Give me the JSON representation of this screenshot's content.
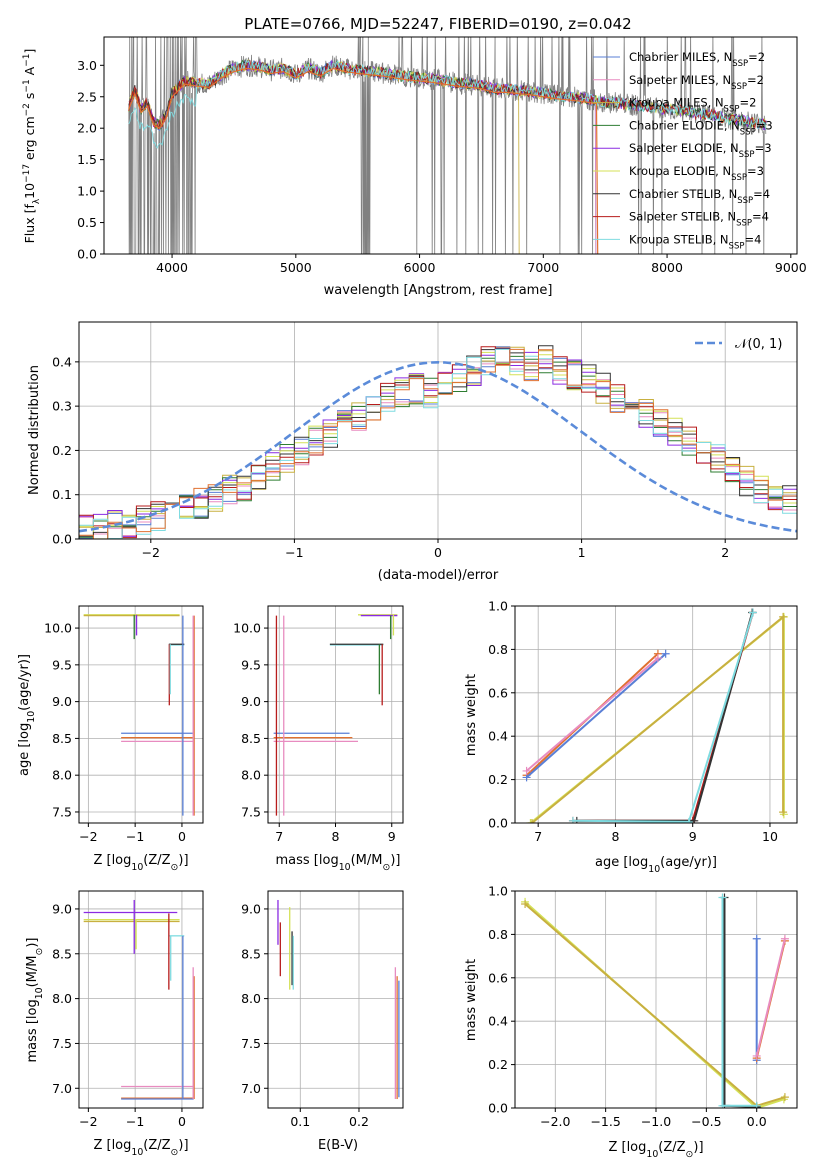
{
  "colors": {
    "chabrier_miles": "#5a7fd6",
    "salpeter_miles": "#e88cc0",
    "kroupa_miles": "#c8b040",
    "chabrier_elodie": "#2e7d32",
    "salpeter_elodie": "#8a2be2",
    "kroupa_elodie": "#d4e157",
    "chabrier_stelib": "#333333",
    "salpeter_stelib": "#b71c1c",
    "kroupa_stelib": "#7fdbe0",
    "data": "#808080",
    "fit": "#e07030",
    "normal": "#5b8bd9",
    "grid": "#b0b0b0"
  },
  "chart_data": [
    {
      "id": "spectrum",
      "type": "line",
      "title": "PLATE=0766, MJD=52247, FIBERID=0190, z=0.042",
      "xlabel": "wavelength [Angstrom, rest frame]",
      "ylabel_prefix": "Flux [f",
      "ylabel_sub": "λ",
      "ylabel_mid": "10",
      "ylabel_sup": "−17",
      "ylabel_rest": " erg cm",
      "ylabel_sup2": "−2",
      "ylabel_mid2": " s",
      "ylabel_sup3": "−1",
      "ylabel_mid3": " A",
      "ylabel_sup4": "−1",
      "ylabel_end": "]",
      "xlim": [
        3450,
        9050
      ],
      "ylim": [
        0,
        3.45
      ],
      "xticks": [
        4000,
        5000,
        6000,
        7000,
        8000,
        9000
      ],
      "yticks": [
        0.0,
        0.5,
        1.0,
        1.5,
        2.0,
        2.5,
        3.0
      ],
      "model_points": [
        [
          3650,
          2.35
        ],
        [
          3700,
          2.6
        ],
        [
          3750,
          2.3
        ],
        [
          3800,
          2.4
        ],
        [
          3850,
          2.1
        ],
        [
          3900,
          2.05
        ],
        [
          3950,
          2.2
        ],
        [
          4000,
          2.55
        ],
        [
          4100,
          2.75
        ],
        [
          4200,
          2.72
        ],
        [
          4300,
          2.7
        ],
        [
          4400,
          2.85
        ],
        [
          4500,
          2.95
        ],
        [
          4600,
          3.0
        ],
        [
          4700,
          2.98
        ],
        [
          4800,
          2.92
        ],
        [
          4900,
          2.95
        ],
        [
          5000,
          2.85
        ],
        [
          5100,
          2.95
        ],
        [
          5200,
          2.88
        ],
        [
          5300,
          3.0
        ],
        [
          5400,
          2.95
        ],
        [
          5500,
          2.92
        ],
        [
          5600,
          2.9
        ],
        [
          5700,
          2.88
        ],
        [
          5800,
          2.85
        ],
        [
          5900,
          2.82
        ],
        [
          6000,
          2.8
        ],
        [
          6100,
          2.78
        ],
        [
          6200,
          2.75
        ],
        [
          6300,
          2.72
        ],
        [
          6400,
          2.7
        ],
        [
          6500,
          2.68
        ],
        [
          6600,
          2.62
        ],
        [
          6700,
          2.62
        ],
        [
          6800,
          2.6
        ],
        [
          6900,
          2.58
        ],
        [
          7000,
          2.55
        ],
        [
          7100,
          2.52
        ],
        [
          7200,
          2.5
        ],
        [
          7300,
          2.48
        ],
        [
          7400,
          2.45
        ],
        [
          7500,
          2.42
        ],
        [
          7600,
          2.4
        ],
        [
          7700,
          2.37
        ],
        [
          7800,
          2.35
        ],
        [
          7900,
          2.32
        ],
        [
          8000,
          2.3
        ],
        [
          8100,
          2.28
        ],
        [
          8200,
          2.25
        ],
        [
          8300,
          2.22
        ],
        [
          8400,
          2.2
        ],
        [
          8500,
          2.15
        ],
        [
          8600,
          2.12
        ],
        [
          8700,
          2.1
        ],
        [
          8800,
          2.05
        ]
      ],
      "series": [
        {
          "name": "Chabrier MILES, N",
          "sub": "SSP",
          "tail": "=2",
          "color_key": "chabrier_miles"
        },
        {
          "name": "Salpeter MILES, N",
          "sub": "SSP",
          "tail": "=2",
          "color_key": "salpeter_miles"
        },
        {
          "name": "Kroupa MILES, N",
          "sub": "SSP",
          "tail": "=2",
          "color_key": "kroupa_miles"
        },
        {
          "name": "Chabrier ELODIE, N",
          "sub": "SSP",
          "tail": "=3",
          "color_key": "chabrier_elodie"
        },
        {
          "name": "Salpeter ELODIE, N",
          "sub": "SSP",
          "tail": "=3",
          "color_key": "salpeter_elodie"
        },
        {
          "name": "Kroupa ELODIE, N",
          "sub": "SSP",
          "tail": "=3",
          "color_key": "kroupa_elodie"
        },
        {
          "name": "Chabrier STELIB, N",
          "sub": "SSP",
          "tail": "=4",
          "color_key": "chabrier_stelib"
        },
        {
          "name": "Salpeter STELIB, N",
          "sub": "SSP",
          "tail": "=4",
          "color_key": "salpeter_stelib"
        },
        {
          "name": "Kroupa STELIB, N",
          "sub": "SSP",
          "tail": "=4",
          "color_key": "kroupa_stelib"
        }
      ],
      "legend_loc": "right"
    },
    {
      "id": "residuals",
      "type": "line",
      "xlabel": "(data-model)/error",
      "ylabel": "Normed distribution",
      "xlim": [
        -2.5,
        2.5
      ],
      "ylim": [
        0,
        0.49
      ],
      "xticks": [
        -2,
        -1,
        0,
        1,
        2
      ],
      "xticklabels": [
        "−2",
        "−1",
        "0",
        "1",
        "2"
      ],
      "yticks": [
        0.0,
        0.1,
        0.2,
        0.3,
        0.4
      ],
      "yticklabels": [
        "0.0",
        "0.1",
        "0.2",
        "0.3",
        "0.4"
      ],
      "bin_width": 0.1,
      "bins_start": -2.5,
      "hist_base": [
        0.02,
        0.022,
        0.03,
        0.035,
        0.04,
        0.05,
        0.06,
        0.07,
        0.08,
        0.09,
        0.11,
        0.12,
        0.14,
        0.16,
        0.18,
        0.2,
        0.22,
        0.24,
        0.26,
        0.28,
        0.3,
        0.32,
        0.33,
        0.34,
        0.33,
        0.35,
        0.36,
        0.38,
        0.4,
        0.41,
        0.4,
        0.39,
        0.41,
        0.38,
        0.37,
        0.36,
        0.34,
        0.32,
        0.3,
        0.28,
        0.26,
        0.24,
        0.22,
        0.2,
        0.18,
        0.15,
        0.13,
        0.11,
        0.1,
        0.09
      ],
      "normal_label": "𝒩(0, 1)",
      "legend_loc": "top-right",
      "grid": true
    },
    {
      "id": "age_vs_Z",
      "type": "scatter",
      "xlabel": "Z [log",
      "xlabel_sub": "10",
      "xlabel_rest": "(Z/Z",
      "xlabel_sub2": "⊙",
      "xlabel_end": ")]",
      "ylabel": "age  [log",
      "ylabel_sub": "10",
      "ylabel_rest": "(age/yr)]",
      "xlim": [
        -2.2,
        0.45
      ],
      "ylim": [
        7.35,
        10.3
      ],
      "xticks": [
        -2,
        -1,
        0
      ],
      "xticklabels": [
        "−2",
        "−1",
        "0"
      ],
      "yticks": [
        7.5,
        8.0,
        8.5,
        9.0,
        9.5,
        10.0
      ],
      "yticklabels": [
        "7.5",
        "8.0",
        "8.5",
        "9.0",
        "9.5",
        "10.0"
      ],
      "grid": true
    },
    {
      "id": "age_vs_mass",
      "type": "scatter",
      "xlabel": "mass [log",
      "xlabel_sub": "10",
      "xlabel_rest": "(M/M",
      "xlabel_sub2": "⊙",
      "xlabel_end": ")]",
      "xlim": [
        6.8,
        9.2
      ],
      "ylim": [
        7.35,
        10.3
      ],
      "xticks": [
        7,
        8,
        9
      ],
      "xticklabels": [
        "7",
        "8",
        "9"
      ],
      "yticks": [
        7.5,
        8.0,
        8.5,
        9.0,
        9.5,
        10.0
      ],
      "yticklabels": [
        "7.5",
        "8.0",
        "8.5",
        "9.0",
        "9.5",
        "10.0"
      ],
      "grid": true
    },
    {
      "id": "massweight_vs_age",
      "type": "line",
      "xlabel": "age  [log",
      "xlabel_sub": "10",
      "xlabel_rest": "(age/yr)]",
      "ylabel": "mass weight",
      "xlim": [
        6.7,
        10.35
      ],
      "ylim": [
        0,
        1
      ],
      "xticks": [
        7,
        8,
        9,
        10
      ],
      "xticklabels": [
        "7",
        "8",
        "9",
        "10"
      ],
      "yticks": [
        0.0,
        0.2,
        0.4,
        0.6,
        0.8,
        1.0
      ],
      "yticklabels": [
        "0.0",
        "0.2",
        "0.4",
        "0.6",
        "0.8",
        "1.0"
      ],
      "grid": true
    },
    {
      "id": "mass_vs_Z",
      "type": "scatter",
      "xlabel": "Z [log",
      "xlabel_sub": "10",
      "xlabel_rest": "(Z/Z",
      "xlabel_sub2": "⊙",
      "xlabel_end": ")]",
      "ylabel": "mass [log",
      "ylabel_sub": "10",
      "ylabel_rest": "(M/M",
      "ylabel_sub2": "⊙",
      "ylabel_end": ")]",
      "xlim": [
        -2.2,
        0.45
      ],
      "ylim": [
        6.78,
        9.2
      ],
      "xticks": [
        -2,
        -1,
        0
      ],
      "xticklabels": [
        "−2",
        "−1",
        "0"
      ],
      "yticks": [
        7.0,
        7.5,
        8.0,
        8.5,
        9.0
      ],
      "yticklabels": [
        "7.0",
        "7.5",
        "8.0",
        "8.5",
        "9.0"
      ],
      "grid": true
    },
    {
      "id": "mass_vs_ebv",
      "type": "scatter",
      "xlabel": "E(B-V)",
      "xlim": [
        0.045,
        0.275
      ],
      "ylim": [
        6.78,
        9.2
      ],
      "xticks": [
        0.1,
        0.2
      ],
      "xticklabels": [
        "0.1",
        "0.2"
      ],
      "yticks": [
        7.0,
        7.5,
        8.0,
        8.5,
        9.0
      ],
      "yticklabels": [
        "7.0",
        "7.5",
        "8.0",
        "8.5",
        "9.0"
      ],
      "grid": true
    },
    {
      "id": "massweight_vs_Z",
      "type": "line",
      "xlabel": "Z [log",
      "xlabel_sub": "10",
      "xlabel_rest": "(Z/Z",
      "xlabel_sub2": "⊙",
      "xlabel_end": ")]",
      "ylabel": "mass weight",
      "xlim": [
        -2.4,
        0.4
      ],
      "ylim": [
        0,
        1
      ],
      "xticks": [
        -2.0,
        -1.5,
        -1.0,
        -0.5,
        0.0
      ],
      "xticklabels": [
        "−2.0",
        "−1.5",
        "−1.0",
        "−0.5",
        "0.0"
      ],
      "yticks": [
        0.0,
        0.2,
        0.4,
        0.6,
        0.8,
        1.0
      ],
      "yticklabels": [
        "0.0",
        "0.2",
        "0.4",
        "0.6",
        "0.8",
        "1.0"
      ],
      "grid": true
    }
  ]
}
